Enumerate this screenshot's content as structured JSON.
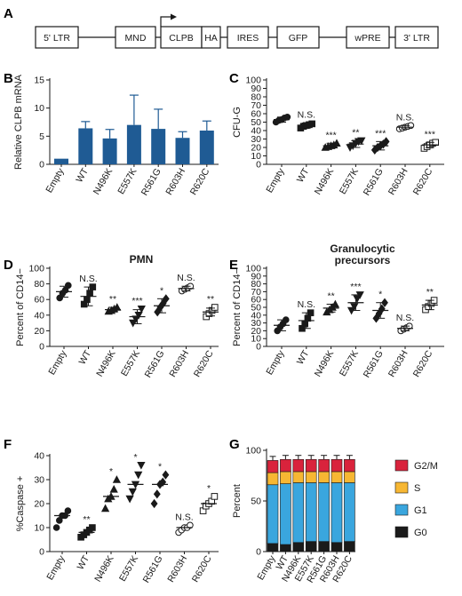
{
  "panels": {
    "a": "A",
    "b": "B",
    "c": "C",
    "d": "D",
    "e": "E",
    "f": "F",
    "g": "G"
  },
  "construct": {
    "elements": [
      "5' LTR",
      "MND",
      "CLPB",
      "HA",
      "IRES",
      "GFP",
      "wPRE",
      "3' LTR"
    ]
  },
  "colors": {
    "bar_b": "#1f5b94",
    "g2m": "#d9233c",
    "s": "#f7b733",
    "g1": "#3aa6de",
    "g0": "#1a1a1a"
  },
  "chart_data": [
    {
      "panel": "B",
      "type": "bar",
      "categories": [
        "Empty",
        "WT",
        "N496K",
        "E557K",
        "R561G",
        "R603H",
        "R620C"
      ],
      "values": [
        1,
        6.4,
        4.6,
        7.0,
        6.3,
        4.7,
        6.0
      ],
      "errors": [
        0,
        1.2,
        1.6,
        5.3,
        3.5,
        1.1,
        1.7
      ],
      "ylabel": "Relative CLPB mRNA",
      "ylim": [
        0,
        15
      ],
      "yticks": [
        0,
        5,
        10,
        15
      ],
      "grid": false
    },
    {
      "panel": "C",
      "type": "scatter",
      "categories": [
        "Empty",
        "WT",
        "N496K",
        "E557K",
        "R561G",
        "R603H",
        "R620C"
      ],
      "ylabel": "CFU-G",
      "ylim": [
        0,
        100
      ],
      "yticks": [
        0,
        10,
        20,
        30,
        40,
        50,
        60,
        70,
        80,
        90,
        100
      ],
      "means": [
        53,
        46,
        22,
        24,
        22,
        44,
        23
      ],
      "sds": [
        3,
        3,
        3,
        4,
        5,
        2,
        3
      ],
      "points": [
        [
          50,
          52,
          53,
          55,
          56
        ],
        [
          43,
          45,
          46,
          47,
          48
        ],
        [
          20,
          21,
          22,
          23,
          25
        ],
        [
          20,
          22,
          25,
          27,
          28
        ],
        [
          17,
          20,
          22,
          24,
          27
        ],
        [
          42,
          43,
          44,
          45,
          46
        ],
        [
          19,
          21,
          23,
          25,
          26
        ]
      ],
      "markers": [
        "circle",
        "square",
        "triangle-up",
        "triangle-down",
        "diamond",
        "circle-open",
        "square-open"
      ],
      "significance": [
        "",
        "N.S.",
        "***",
        "**",
        "***",
        "N.S.",
        "***"
      ]
    },
    {
      "panel": "D",
      "type": "scatter",
      "title": "PMN",
      "categories": [
        "Empty",
        "WT",
        "N496K",
        "E557K",
        "R561G",
        "R603H",
        "R620C"
      ],
      "ylabel": "Percent of CD14−",
      "ylim": [
        0,
        100
      ],
      "yticks": [
        0,
        20,
        40,
        60,
        80,
        100
      ],
      "means": [
        70,
        64,
        47,
        38,
        52,
        74,
        44
      ],
      "sds": [
        7,
        12,
        3,
        9,
        9,
        3,
        5
      ],
      "points": [
        [
          62,
          68,
          72,
          78
        ],
        [
          54,
          60,
          68,
          76
        ],
        [
          45,
          46,
          48,
          50
        ],
        [
          30,
          35,
          40,
          48
        ],
        [
          44,
          50,
          55,
          61
        ],
        [
          71,
          73,
          75,
          77
        ],
        [
          38,
          42,
          46,
          50
        ]
      ],
      "markers": [
        "circle",
        "square",
        "triangle-up",
        "triangle-down",
        "diamond",
        "circle-open",
        "square-open"
      ],
      "significance": [
        "",
        "N.S.",
        "**",
        "***",
        "*",
        "N.S.",
        "**"
      ]
    },
    {
      "panel": "E",
      "type": "scatter",
      "title": "Granulocytic precursors",
      "categories": [
        "Empty",
        "WT",
        "N496K",
        "E557K",
        "R561G",
        "R603H",
        "R620C"
      ],
      "ylabel": "Percent of CD14−",
      "ylim": [
        0,
        100
      ],
      "yticks": [
        0,
        10,
        20,
        30,
        40,
        50,
        60,
        70,
        80,
        90,
        100
      ],
      "means": [
        27,
        33,
        49,
        56,
        46,
        23,
        53
      ],
      "sds": [
        7,
        10,
        5,
        10,
        10,
        3,
        6
      ],
      "points": [
        [
          20,
          25,
          29,
          34
        ],
        [
          23,
          29,
          36,
          43
        ],
        [
          44,
          47,
          50,
          54
        ],
        [
          46,
          51,
          61,
          66
        ],
        [
          36,
          42,
          48,
          56
        ],
        [
          20,
          22,
          24,
          26
        ],
        [
          47,
          51,
          55,
          59
        ]
      ],
      "markers": [
        "circle",
        "square",
        "triangle-up",
        "triangle-down",
        "diamond",
        "circle-open",
        "square-open"
      ],
      "significance": [
        "",
        "N.S.",
        "**",
        "***",
        "*",
        "N.S.",
        "**"
      ]
    },
    {
      "panel": "F",
      "type": "scatter",
      "categories": [
        "Empty",
        "WT",
        "N496K",
        "E557K",
        "R561G",
        "R603H",
        "R620C"
      ],
      "ylabel": "%Caspase +",
      "ylim": [
        0,
        40
      ],
      "yticks": [
        0,
        10,
        20,
        30,
        40
      ],
      "means": [
        15,
        8,
        23,
        28,
        28,
        10,
        20
      ],
      "points": [
        [
          10,
          13,
          15,
          15,
          17
        ],
        [
          6,
          7,
          8,
          9,
          10
        ],
        [
          18,
          22,
          23,
          26,
          30
        ],
        [
          22,
          25,
          28,
          32,
          36
        ],
        [
          20,
          24,
          28,
          29,
          32
        ],
        [
          8,
          9,
          10,
          10,
          11
        ],
        [
          17,
          19,
          20,
          21,
          23
        ]
      ],
      "markers": [
        "circle",
        "square",
        "triangle-up",
        "triangle-down",
        "diamond",
        "circle-open",
        "square-open"
      ],
      "significance": [
        "",
        "**",
        "*",
        "*",
        "*",
        "N.S.",
        "*"
      ]
    },
    {
      "panel": "G",
      "type": "bar",
      "stacked": true,
      "categories": [
        "Empty",
        "WT",
        "N496K",
        "E557K",
        "R561G",
        "R603H",
        "R620C"
      ],
      "ylabel": "Percent",
      "ylim": [
        0,
        100
      ],
      "yticks": [
        0,
        50,
        100
      ],
      "series": [
        {
          "name": "G0",
          "values": [
            8,
            7,
            9,
            10,
            10,
            9,
            10
          ],
          "errors": [
            2,
            2,
            2,
            2,
            2,
            2,
            2
          ]
        },
        {
          "name": "G1",
          "values": [
            58,
            60,
            59,
            58,
            58,
            59,
            58
          ],
          "errors": [
            3,
            3,
            3,
            3,
            3,
            3,
            3
          ]
        },
        {
          "name": "S",
          "values": [
            12,
            12,
            11,
            11,
            11,
            11,
            11
          ],
          "errors": [
            3,
            3,
            3,
            3,
            3,
            3,
            3
          ]
        },
        {
          "name": "G2/M",
          "values": [
            12,
            12,
            12,
            12,
            12,
            12,
            12
          ],
          "errors": [
            4,
            4,
            4,
            4,
            4,
            4,
            4
          ]
        }
      ],
      "legend": [
        "G2/M",
        "S",
        "G1",
        "G0"
      ],
      "legend_position": "right"
    }
  ]
}
